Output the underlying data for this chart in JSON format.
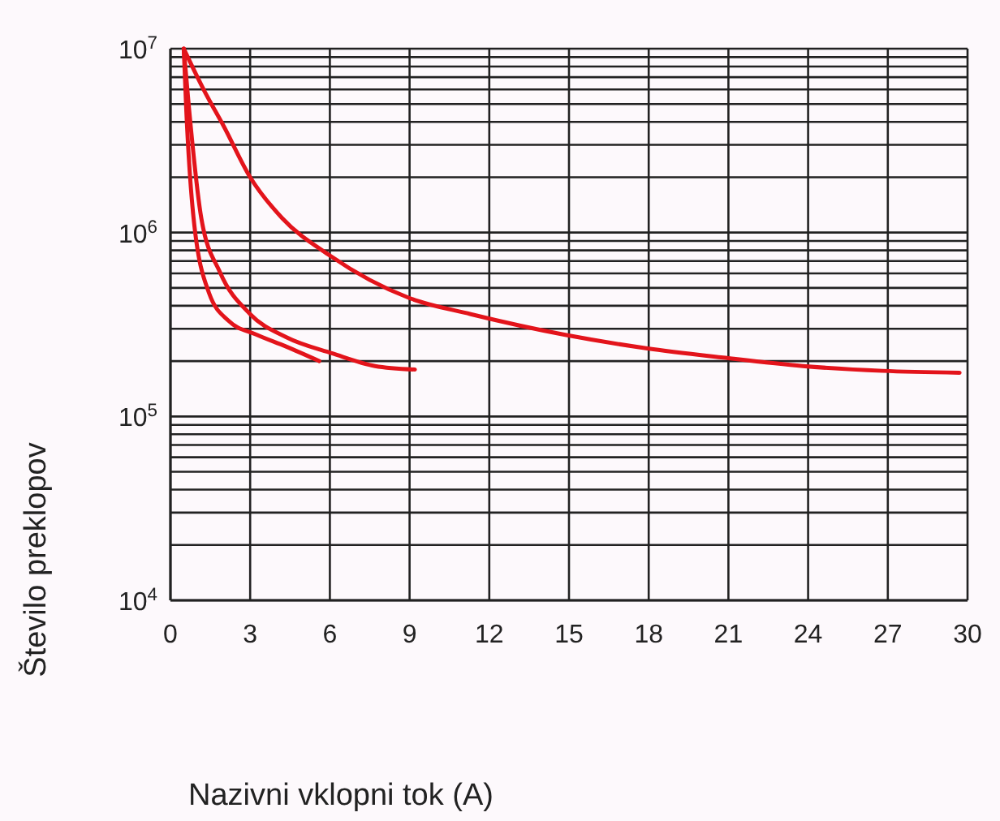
{
  "chart_data": {
    "type": "line",
    "xlabel": "Nazivni vklopni tok (A)",
    "ylabel": "Število preklopov",
    "log": "y",
    "grid": true,
    "line_style": "solid",
    "marker": "none",
    "xlim": [
      0,
      30
    ],
    "xticks": [
      0,
      3,
      6,
      9,
      12,
      15,
      18,
      21,
      24,
      27,
      30
    ],
    "ylim": [
      10000,
      10000000
    ],
    "yticks": [
      {
        "value": 10000,
        "label": "10$^{4}$"
      },
      {
        "value": 20000,
        "label": null
      },
      {
        "value": 30000,
        "label": null
      },
      {
        "value": 40000,
        "label": null
      },
      {
        "value": 50000,
        "label": null
      },
      {
        "value": 60000,
        "label": null
      },
      {
        "value": 70000,
        "label": null
      },
      {
        "value": 80000,
        "label": null
      },
      {
        "value": 90000,
        "label": null
      },
      {
        "value": 100000,
        "label": "10$^{5}$"
      },
      {
        "value": 200000,
        "label": null
      },
      {
        "value": 300000,
        "label": null
      },
      {
        "value": 400000,
        "label": null
      },
      {
        "value": 500000,
        "label": null
      },
      {
        "value": 600000,
        "label": null
      },
      {
        "value": 700000,
        "label": null
      },
      {
        "value": 800000,
        "label": null
      },
      {
        "value": 900000,
        "label": null
      },
      {
        "value": 1000000,
        "label": "10$^{6}$"
      },
      {
        "value": 2000000,
        "label": null
      },
      {
        "value": 3000000,
        "label": null
      },
      {
        "value": 4000000,
        "label": null
      },
      {
        "value": 5000000,
        "label": null
      },
      {
        "value": 6000000,
        "label": null
      },
      {
        "value": 7000000,
        "label": null
      },
      {
        "value": 8000000,
        "label": null
      },
      {
        "value": 9000000,
        "label": null
      },
      {
        "value": 10000000,
        "label": "10$^{7}$"
      }
    ],
    "series": [
      {
        "color": "#e3141b",
        "x": [
          0.5,
          1.3,
          2,
          3,
          4.2,
          6,
          9,
          11.3,
          14.9,
          17.9,
          20.8,
          23.8,
          26.8,
          29.7
        ],
        "values": [
          10000000,
          5800000,
          3800000,
          2000000,
          1200000,
          750000,
          440000,
          360000,
          277000,
          235000,
          209000,
          188000,
          177000,
          173000
        ]
      },
      {
        "color": "#e3141b",
        "x": [
          0.5,
          0.7,
          1.16,
          1.86,
          3,
          4.35,
          6.1,
          7.7,
          9.2
        ],
        "values": [
          10000000,
          4700000,
          1200000,
          610000,
          360000,
          270000,
          220000,
          188000,
          180000
        ]
      },
      {
        "color": "#e3141b",
        "x": [
          0.5,
          0.6,
          0.87,
          1.45,
          2.2,
          3.2,
          4.35,
          5.6
        ],
        "values": [
          10000000,
          4500000,
          1200000,
          470000,
          330000,
          280000,
          240000,
          200000
        ]
      }
    ]
  }
}
